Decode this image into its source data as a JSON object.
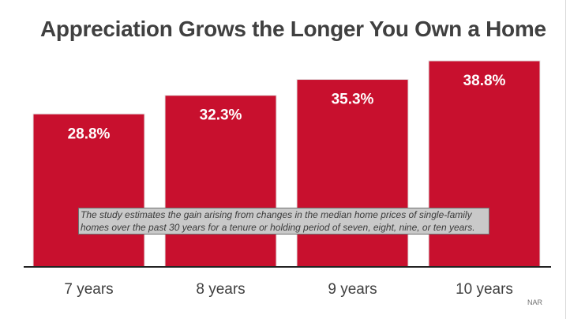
{
  "title": "Appreciation Grows the Longer You Own a Home",
  "note": "The study estimates the gain arising from changes in the median home prices of single-family homes over the past 30 years for a tenure or holding period of seven, eight, nine, or ten years.",
  "source": "NAR",
  "colors": {
    "bar": "#c8102e",
    "title": "#404040",
    "note_background": "#c9c9c9"
  },
  "chart_data": {
    "type": "bar",
    "title": "Appreciation Grows the Longer You Own a Home",
    "categories": [
      "7 years",
      "8 years",
      "9 years",
      "10 years"
    ],
    "values": [
      28.8,
      32.3,
      35.3,
      38.8
    ],
    "value_labels": [
      "28.8%",
      "32.3%",
      "35.3%",
      "38.8%"
    ],
    "unit": "%",
    "ylim": [
      0,
      38.8
    ],
    "grid": false,
    "legend": "none",
    "xlabel": "",
    "ylabel": ""
  }
}
